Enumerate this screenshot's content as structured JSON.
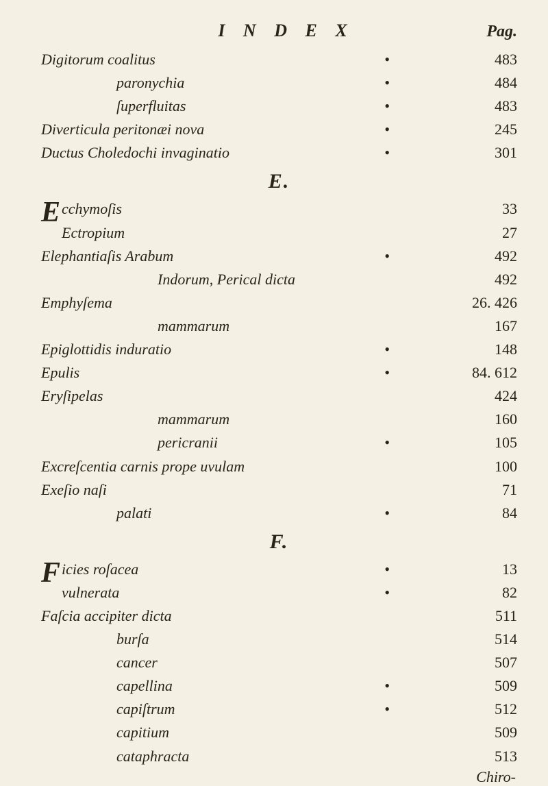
{
  "header": {
    "title_spaced": "I N D E X",
    "pag_label": "Pag."
  },
  "sections": {
    "E": "E.",
    "F": "F."
  },
  "rows": [
    {
      "entry": "Digitorum coalitus",
      "mid": "•",
      "page": "483"
    },
    {
      "entry": "paronychia",
      "indent": 1,
      "mid": "•",
      "page": "484"
    },
    {
      "entry": "ſuperfluitas",
      "indent": 1,
      "mid": "•",
      "page": "483"
    },
    {
      "entry": "Diverticula peritonæi nova",
      "mid": "•",
      "page": "245"
    },
    {
      "entry": "Ductus Choledochi invaginatio",
      "mid": "•",
      "page": "301"
    }
  ],
  "rowsE": [
    {
      "dropcap": "E",
      "entry_first": "cchymoſis",
      "entry_second": "Ectropium",
      "page_first": "33",
      "page_second": "27"
    },
    {
      "entry": "Elephantiaſis Arabum",
      "mid": "•",
      "page": "492"
    },
    {
      "entry": "Indorum, Perical dicta",
      "indent": 2,
      "page": "492"
    },
    {
      "entry": "Emphyſema",
      "page": "26. 426"
    },
    {
      "entry": "mammarum",
      "indent": 2,
      "page": "167"
    },
    {
      "entry": "Epiglottidis induratio",
      "mid": "•",
      "page": "148"
    },
    {
      "entry": "Epulis",
      "mid": "•",
      "page": "84. 612"
    },
    {
      "entry": "Eryſipelas",
      "page": "424"
    },
    {
      "entry": "mammarum",
      "indent": 2,
      "page": "160"
    },
    {
      "entry": "pericranii",
      "indent": 2,
      "mid": "•",
      "page": "105"
    },
    {
      "entry": "Excreſcentia carnis prope uvulam",
      "page": "100"
    },
    {
      "entry": "Exeſio naſi",
      "page": "71"
    },
    {
      "entry": "palati",
      "indent": 1,
      "mid": "•",
      "page": "84"
    }
  ],
  "rowsF": [
    {
      "dropcap": "F",
      "entry_first": "icies roſacea",
      "entry_second": "vulnerata",
      "mid_first": "•",
      "mid_second": "•",
      "page_first": "13",
      "page_second": "82"
    },
    {
      "entry": "Faſcia accipiter dicta",
      "page": "511"
    },
    {
      "entry": "burſa",
      "indent": 1,
      "page": "514"
    },
    {
      "entry": "cancer",
      "indent": 1,
      "page": "507"
    },
    {
      "entry": "capellina",
      "indent": 1,
      "mid": "•",
      "page": "509"
    },
    {
      "entry": "capiſtrum",
      "indent": 1,
      "mid": "•",
      "page": "512"
    },
    {
      "entry": "capitium",
      "indent": 1,
      "page": "509"
    },
    {
      "entry": "cataphracta",
      "indent": 1,
      "page": "513"
    }
  ],
  "tail": {
    "chiro": "Chiro-"
  },
  "style": {
    "bg": "#f4f0e4",
    "ink": "#2a2418",
    "base_fontsize": 22,
    "header_fontsize": 26,
    "dropcap_fontsize": 42
  }
}
